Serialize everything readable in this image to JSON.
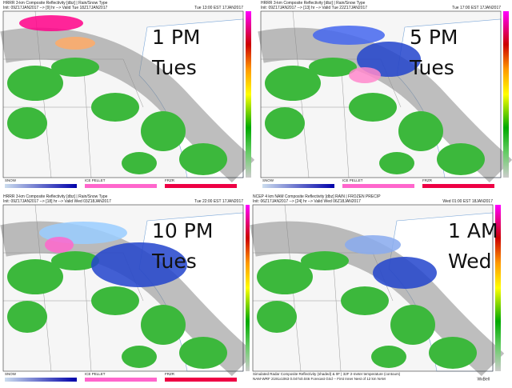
{
  "panels": [
    {
      "header": [
        "HRRR 3-km Composite Reflectivity [dbz] | Rain/Snow Type",
        "Init: 09Z17JAN2017 --> [9] hr --> Valid Tue 18Z17JAN2017"
      ],
      "valid": "Tue 13:00 EST 17JAN2017",
      "label": [
        "1 PM",
        "Tues"
      ],
      "legend": [
        "SNOW",
        "ICE PELLET",
        "FRZR"
      ]
    },
    {
      "header": [
        "HRRR 3-km Composite Reflectivity [dbz] | Rain/Snow Type",
        "Init: 09Z17JAN2017 --> [13] hr --> Valid Tue 22Z17JAN2017"
      ],
      "valid": "Tue 17:00 EST 17JAN2017",
      "label": [
        "5 PM",
        "Tues"
      ],
      "legend": [
        "SNOW",
        "ICE PELLET",
        "FRZR"
      ]
    },
    {
      "header": [
        "HRRR 3-km Composite Reflectivity [dbz] | Rain/Snow Type",
        "Init: 09Z17JAN2017 --> [18] hr --> Valid Wed 03Z18JAN2017"
      ],
      "valid": "Tue 22:00 EST 17JAN2017",
      "label": [
        "10 PM",
        "Tues"
      ],
      "legend": [
        "SNOW",
        "ICE PELLET",
        "FRZR"
      ]
    },
    {
      "header": [
        "NCEP 4 km NAM Composite Reflectivity [dbz] RAIN | FROZEN PRECIP",
        "Init: 06Z17JAN2017 --> [24] hr --> Valid Wed 06Z18JAN2017"
      ],
      "valid": "Wed 01:00 EST 18JAN2017",
      "label": [
        "1 AM",
        "Wed"
      ],
      "footer": [
        "Simulated Radar Composite Reflectivity (shaded) & 0F | 32F 2-meter temperature (contours)",
        "NAM-WRF 2191x1063 0.047x0.046 Forecast Grid -- First Inner Nest of 12 km NAM"
      ],
      "brand": "WxBell"
    }
  ]
}
